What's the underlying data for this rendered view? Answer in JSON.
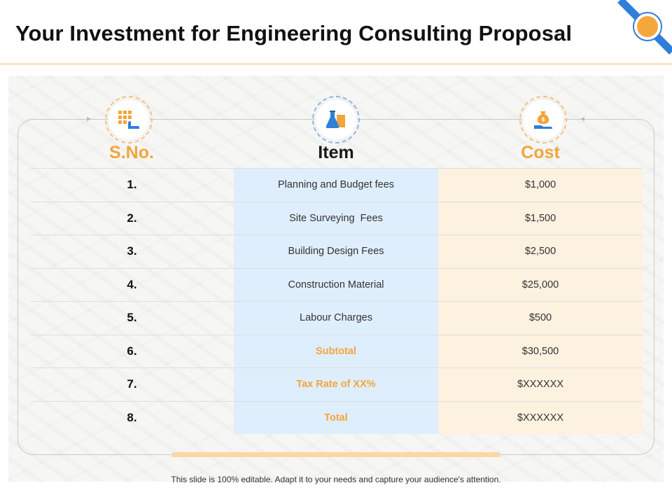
{
  "title": "Your Investment for Engineering Consulting Proposal",
  "columns": {
    "sno": "S.No.",
    "item": "Item",
    "cost": "Cost"
  },
  "icons": {
    "sno": "calculator-hand-icon",
    "item": "flask-icon",
    "cost": "money-bag-hand-icon"
  },
  "rows": [
    {
      "sno": "1.",
      "item": "Planning and Budget fees",
      "cost": "$1,000"
    },
    {
      "sno": "2.",
      "item": "Site Surveying  Fees",
      "cost": "$1,500"
    },
    {
      "sno": "3.",
      "item": "Building Design Fees",
      "cost": "$2,500"
    },
    {
      "sno": "4.",
      "item": "Construction Material",
      "cost": "$25,000"
    },
    {
      "sno": "5.",
      "item": "Labour Charges",
      "cost": "$500"
    },
    {
      "sno": "6.",
      "item": "Subtotal",
      "cost": "$30,500"
    },
    {
      "sno": "7.",
      "item": "Tax Rate of XX%",
      "cost": "$XXXXXX"
    },
    {
      "sno": "8.",
      "item": "Total",
      "cost": "$XXXXXX"
    }
  ],
  "accent_rows": [
    5,
    6,
    7
  ],
  "colors": {
    "accent": "#f3a53c",
    "item_column": "#dfeefc",
    "cost_column": "#fdf1e0",
    "corner_blue": "#2f7fd8"
  },
  "footer": "This slide is 100% editable. Adapt it to your needs and capture your audience's attention."
}
